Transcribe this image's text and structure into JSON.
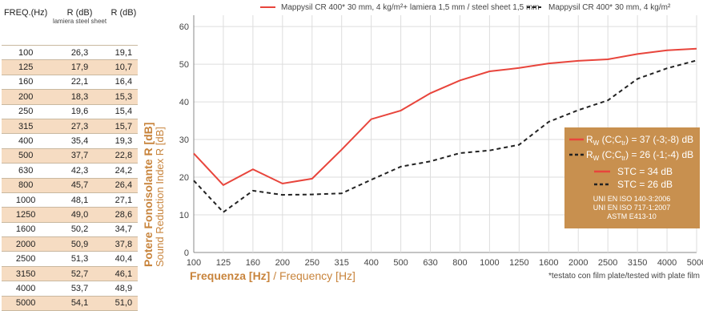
{
  "table": {
    "headers": [
      "FREQ.(Hz)",
      "R (dB)",
      "R (dB)"
    ],
    "header_sub": "lamiera steel sheet",
    "rows": [
      [
        "100",
        "26,3",
        "19,1"
      ],
      [
        "125",
        "17,9",
        "10,7"
      ],
      [
        "160",
        "22,1",
        "16,4"
      ],
      [
        "200",
        "18,3",
        "15,3"
      ],
      [
        "250",
        "19,6",
        "15,4"
      ],
      [
        "315",
        "27,3",
        "15,7"
      ],
      [
        "400",
        "35,4",
        "19,3"
      ],
      [
        "500",
        "37,7",
        "22,8"
      ],
      [
        "630",
        "42,3",
        "24,2"
      ],
      [
        "800",
        "45,7",
        "26,4"
      ],
      [
        "1000",
        "48,1",
        "27,1"
      ],
      [
        "1250",
        "49,0",
        "28,6"
      ],
      [
        "1600",
        "50,2",
        "34,7"
      ],
      [
        "2000",
        "50,9",
        "37,8"
      ],
      [
        "2500",
        "51,3",
        "40,4"
      ],
      [
        "3150",
        "52,7",
        "46,1"
      ],
      [
        "4000",
        "53,7",
        "48,9"
      ],
      [
        "5000",
        "54,1",
        "51,0"
      ]
    ],
    "alt_color": "#f6dcc2"
  },
  "chart_data": {
    "type": "line",
    "categories": [
      "100",
      "125",
      "160",
      "200",
      "250",
      "315",
      "400",
      "500",
      "630",
      "800",
      "1000",
      "1250",
      "1600",
      "2000",
      "2500",
      "3150",
      "4000",
      "5000"
    ],
    "series": [
      {
        "name": "Mappysil CR 400* 30 mm, 4 kg/m²+ lamiera 1,5 mm / steel sheet 1,5 mm",
        "color": "#e8453c",
        "dash": "solid",
        "values": [
          26.3,
          17.9,
          22.1,
          18.3,
          19.6,
          27.3,
          35.4,
          37.7,
          42.3,
          45.7,
          48.1,
          49.0,
          50.2,
          50.9,
          51.3,
          52.7,
          53.7,
          54.1
        ]
      },
      {
        "name": "Mappysil CR 400* 30 mm, 4 kg/m²",
        "color": "#222222",
        "dash": "dashed",
        "values": [
          19.1,
          10.7,
          16.4,
          15.3,
          15.4,
          15.7,
          19.3,
          22.8,
          24.2,
          26.4,
          27.1,
          28.6,
          34.7,
          37.8,
          40.4,
          46.1,
          48.9,
          51.0
        ]
      }
    ],
    "ylim": [
      0,
      63
    ],
    "yticks": [
      "0",
      "10",
      "20",
      "30",
      "40",
      "50",
      "60"
    ],
    "grid": true,
    "ylabel_main": "Potere Fonoisolante R [dB]",
    "ylabel_sub": "Sound Reduction Index R [dB]",
    "xlabel_main": "Frequenza [Hz]",
    "xlabel_sep": " / ",
    "xlabel_sub": "Frequency [Hz]",
    "legend_position": "top",
    "info_box": {
      "color": "#c8904f",
      "lines": [
        "R  (C;C  ) = 37 (-3;-8) dB",
        "R  (C;C  ) = 26 (-1;-4) dB",
        "STC = 34 dB",
        "STC = 26 dB"
      ],
      "rw_sym": "R",
      "rw_sub": "W",
      "ctr_sub": "tr",
      "rw_val1": " (C;C",
      "rw_val1b": ") = 37 (-3;-8) dB",
      "rw_val2b": ") = 26 (-1;-4) dB",
      "stc1": "STC = 34 dB",
      "stc2": "STC = 26 dB",
      "standards": [
        "UNI EN ISO 140-3:2006",
        "UNI EN ISO 717-1:2007",
        "ASTM E413-10"
      ]
    },
    "footnote": "*testato con film plate/tested with plate film"
  }
}
